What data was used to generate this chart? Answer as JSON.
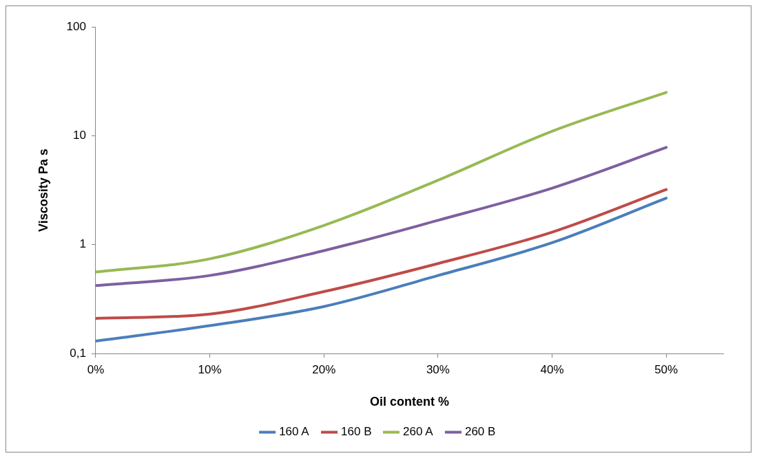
{
  "chart_data": {
    "type": "line",
    "xlabel": "Oil content %",
    "ylabel": "Viscosity Pa s",
    "log": "y",
    "grid": false,
    "legend": "bottom",
    "marker": "none",
    "line_style": "solid",
    "x": [
      0,
      10,
      20,
      30,
      40,
      50
    ],
    "xlim": [
      0,
      55
    ],
    "xticks": [
      {
        "value": 0,
        "label": "0%"
      },
      {
        "value": 10,
        "label": "10%"
      },
      {
        "value": 20,
        "label": "20%"
      },
      {
        "value": 30,
        "label": "30%"
      },
      {
        "value": 40,
        "label": "40%"
      },
      {
        "value": 50,
        "label": "50%"
      }
    ],
    "ylim": [
      0.1,
      100
    ],
    "yticks": [
      {
        "value": 0.1,
        "label": "0,1"
      },
      {
        "value": 1,
        "label": "1"
      },
      {
        "value": 10,
        "label": "10"
      },
      {
        "value": 100,
        "label": "100"
      }
    ],
    "series": [
      {
        "name": "160 A",
        "color": "#4a7ebb",
        "values": [
          0.13,
          0.18,
          0.27,
          0.52,
          1.04,
          2.67
        ]
      },
      {
        "name": "160 B",
        "color": "#be4b48",
        "values": [
          0.21,
          0.23,
          0.37,
          0.67,
          1.3,
          3.2
        ]
      },
      {
        "name": "260 A",
        "color": "#98b954",
        "values": [
          0.56,
          0.74,
          1.5,
          3.9,
          11,
          25
        ]
      },
      {
        "name": "260 B",
        "color": "#7d60a0",
        "values": [
          0.42,
          0.52,
          0.88,
          1.67,
          3.3,
          7.8
        ]
      }
    ]
  }
}
